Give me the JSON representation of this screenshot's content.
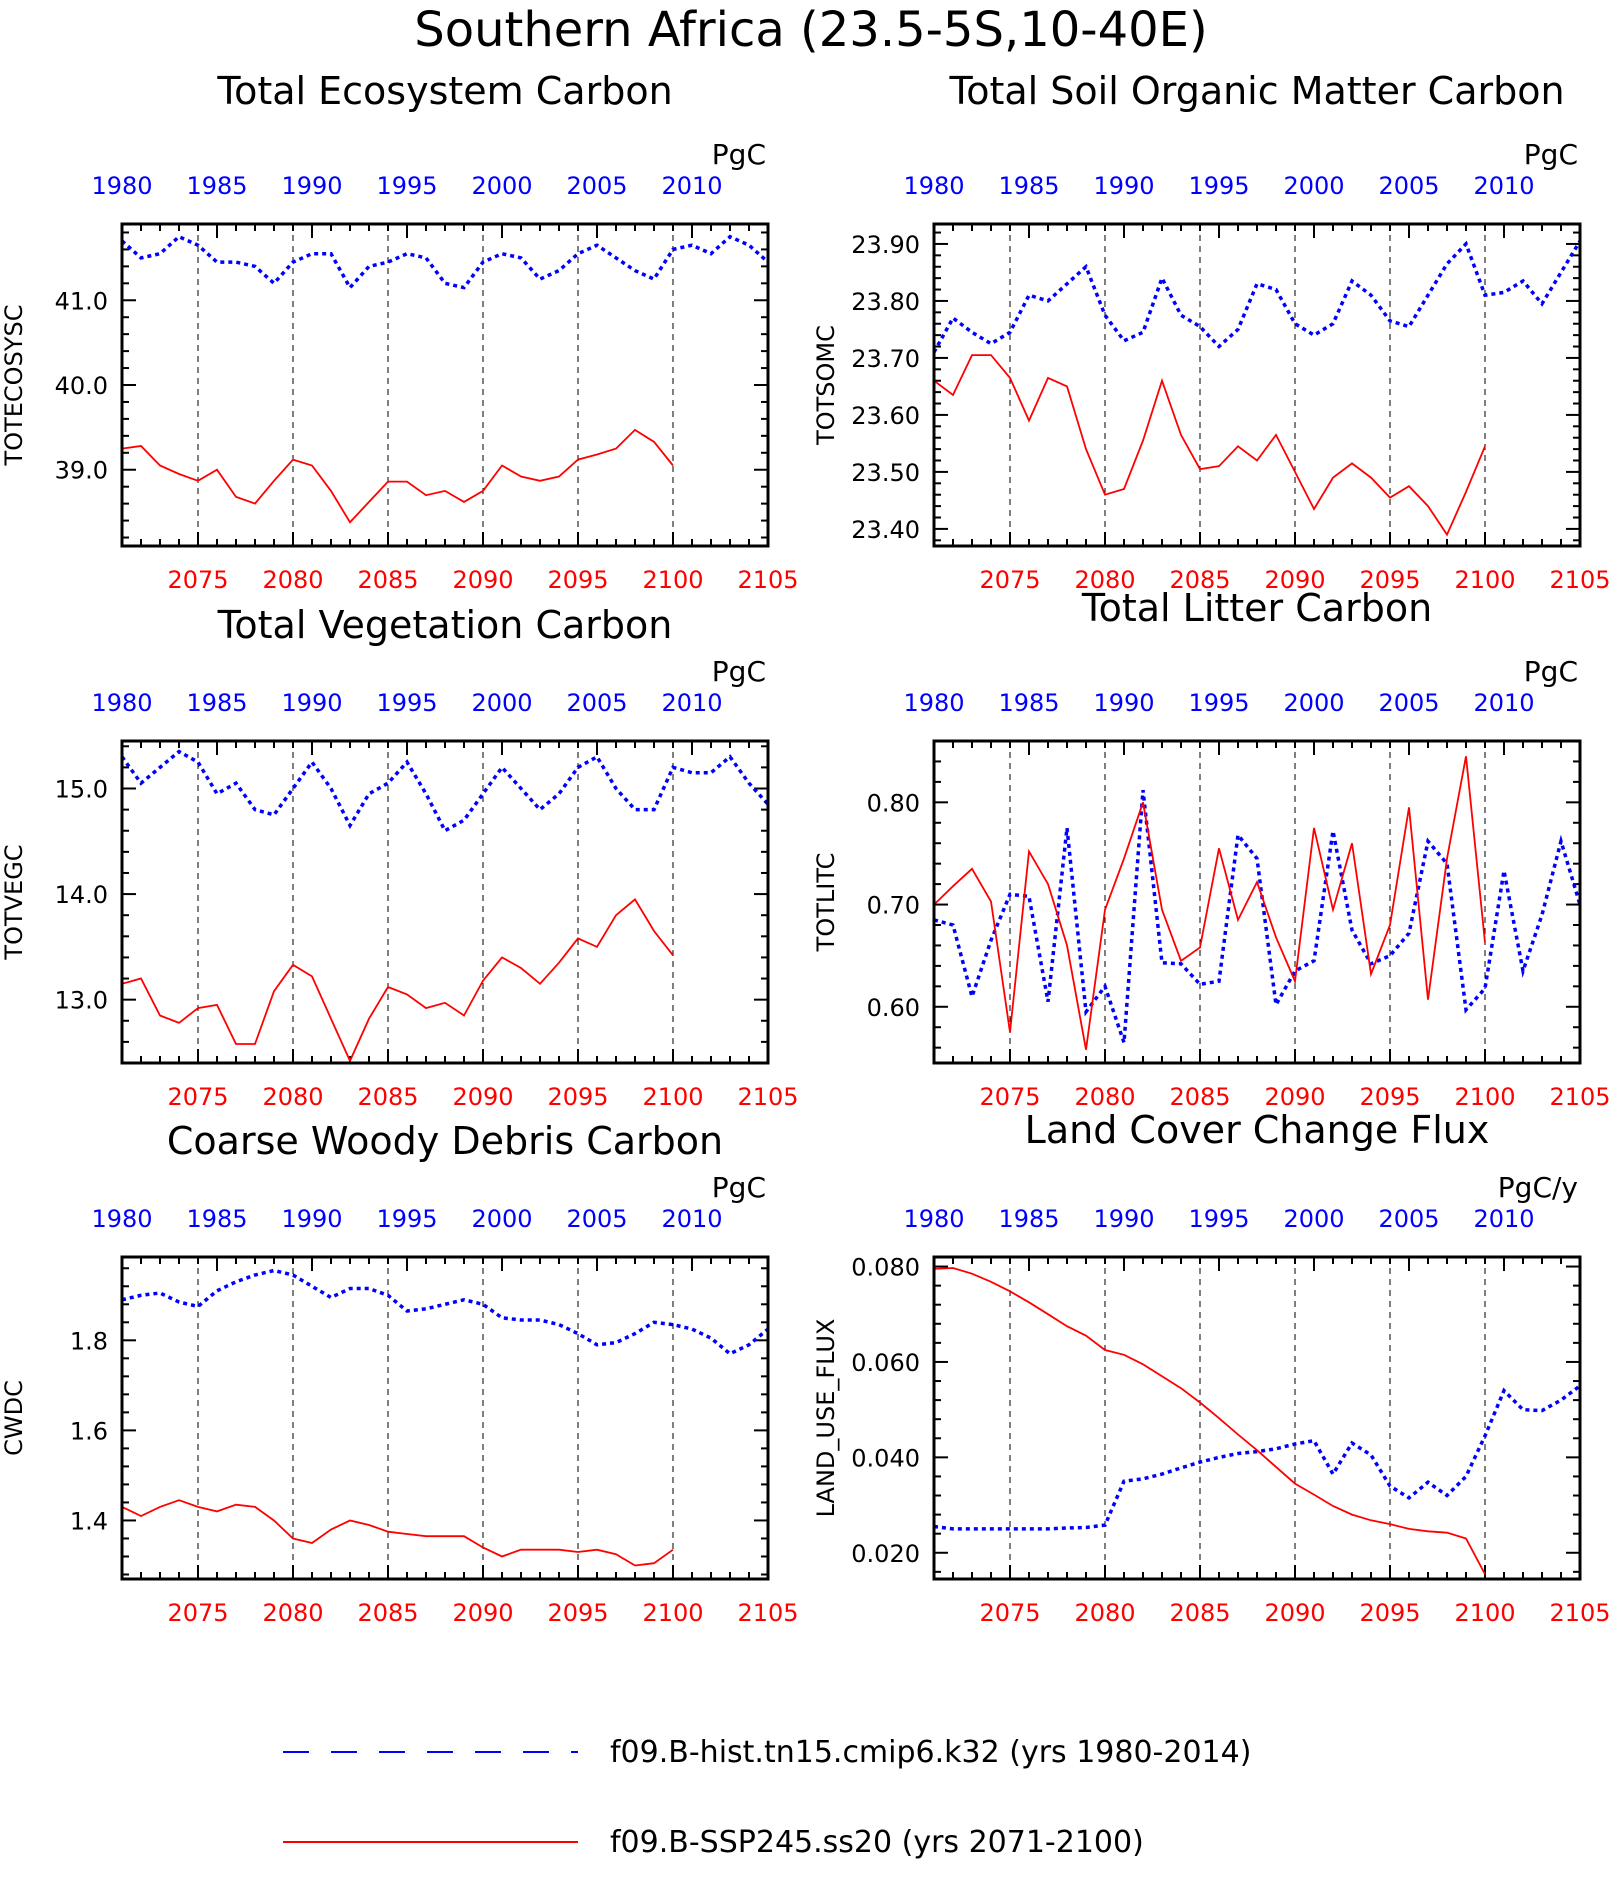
{
  "title": "Southern Africa (23.5-5S,10-40E)",
  "colors": {
    "hist": "#0000ff",
    "ssp": "#ff0000",
    "axis": "#000000",
    "grid": "#000000"
  },
  "legend": [
    {
      "label": "f09.B-hist.tn15.cmip6.k32 (yrs 1980-2014)",
      "color": "#0000ff",
      "style": "dashed"
    },
    {
      "label": "f09.B-SSP245.ss20 (yrs 2071-2100)",
      "color": "#ff0000",
      "style": "solid"
    }
  ],
  "chart_data": [
    {
      "type": "line",
      "title": "Total Ecosystem Carbon",
      "ylabel": "TOTECOSYSC",
      "units": "PgC",
      "ylim": [
        38.1,
        41.9
      ],
      "yticks": [
        39.0,
        40.0,
        41.0
      ],
      "ytick_labels": [
        "39.0",
        "40.0",
        "41.0"
      ],
      "bottom_axis": {
        "range": [
          2071,
          2105
        ],
        "ticks": [
          2075,
          2080,
          2085,
          2090,
          2095,
          2100,
          2105
        ]
      },
      "top_axis": {
        "range": [
          1980,
          2014
        ],
        "ticks": [
          1980,
          1985,
          1990,
          1995,
          2000,
          2005,
          2010
        ]
      },
      "series": [
        {
          "name": "f09.B-hist.tn15.cmip6.k32 (yrs 1980-2014)",
          "color": "#0000ff",
          "style": "dotted",
          "start": 1980,
          "values": [
            41.7,
            41.5,
            41.55,
            41.75,
            41.65,
            41.45,
            41.45,
            41.4,
            41.2,
            41.45,
            41.55,
            41.55,
            41.15,
            41.4,
            41.45,
            41.55,
            41.5,
            41.2,
            41.15,
            41.45,
            41.55,
            41.5,
            41.25,
            41.35,
            41.55,
            41.65,
            41.5,
            41.35,
            41.25,
            41.6,
            41.65,
            41.55,
            41.75,
            41.65,
            41.45
          ]
        },
        {
          "name": "f09.B-SSP245.ss20 (yrs 2071-2100)",
          "color": "#ff0000",
          "style": "solid",
          "start": 2071,
          "values": [
            39.25,
            39.28,
            39.05,
            38.95,
            38.87,
            39.0,
            38.68,
            38.6,
            38.87,
            39.12,
            39.05,
            38.75,
            38.38,
            38.62,
            38.86,
            38.86,
            38.7,
            38.75,
            38.62,
            38.75,
            39.05,
            38.92,
            38.87,
            38.92,
            39.12,
            39.18,
            39.25,
            39.47,
            39.33,
            39.05
          ]
        }
      ]
    },
    {
      "type": "line",
      "title": "Total Soil Organic Matter Carbon",
      "ylabel": "TOTSOMC",
      "units": "PgC",
      "ylim": [
        23.37,
        23.935
      ],
      "yticks": [
        23.4,
        23.5,
        23.6,
        23.7,
        23.8,
        23.9
      ],
      "ytick_labels": [
        "23.40",
        "23.50",
        "23.60",
        "23.70",
        "23.80",
        "23.90"
      ],
      "bottom_axis": {
        "range": [
          2071,
          2105
        ],
        "ticks": [
          2075,
          2080,
          2085,
          2090,
          2095,
          2100,
          2105
        ]
      },
      "top_axis": {
        "range": [
          1980,
          2014
        ],
        "ticks": [
          1980,
          1985,
          1990,
          1995,
          2000,
          2005,
          2010
        ]
      },
      "series": [
        {
          "name": "f09.B-hist.tn15.cmip6.k32 (yrs 1980-2014)",
          "color": "#0000ff",
          "style": "dotted",
          "start": 1980,
          "values": [
            23.71,
            23.77,
            23.745,
            23.725,
            23.745,
            23.81,
            23.8,
            23.83,
            23.86,
            23.775,
            23.73,
            23.745,
            23.84,
            23.775,
            23.755,
            23.72,
            23.75,
            23.83,
            23.82,
            23.76,
            23.74,
            23.76,
            23.835,
            23.81,
            23.765,
            23.755,
            23.81,
            23.865,
            23.9,
            23.81,
            23.815,
            23.835,
            23.795,
            23.85,
            23.905
          ]
        },
        {
          "name": "f09.B-SSP245.ss20 (yrs 2071-2100)",
          "color": "#ff0000",
          "style": "solid",
          "start": 2071,
          "values": [
            23.66,
            23.635,
            23.705,
            23.705,
            23.665,
            23.59,
            23.665,
            23.65,
            23.54,
            23.46,
            23.47,
            23.555,
            23.66,
            23.565,
            23.505,
            23.51,
            23.545,
            23.52,
            23.565,
            23.5,
            23.435,
            23.49,
            23.515,
            23.49,
            23.455,
            23.475,
            23.44,
            23.39,
            23.465,
            23.545
          ]
        }
      ]
    },
    {
      "type": "line",
      "title": "Total Vegetation Carbon",
      "ylabel": "TOTVEGC",
      "units": "PgC",
      "ylim": [
        12.4,
        15.45
      ],
      "yticks": [
        13.0,
        14.0,
        15.0
      ],
      "ytick_labels": [
        "13.0",
        "14.0",
        "15.0"
      ],
      "bottom_axis": {
        "range": [
          2071,
          2105
        ],
        "ticks": [
          2075,
          2080,
          2085,
          2090,
          2095,
          2100,
          2105
        ]
      },
      "top_axis": {
        "range": [
          1980,
          2014
        ],
        "ticks": [
          1980,
          1985,
          1990,
          1995,
          2000,
          2005,
          2010
        ]
      },
      "series": [
        {
          "name": "f09.B-hist.tn15.cmip6.k32 (yrs 1980-2014)",
          "color": "#0000ff",
          "style": "dotted",
          "start": 1980,
          "values": [
            15.3,
            15.05,
            15.2,
            15.35,
            15.25,
            14.95,
            15.05,
            14.8,
            14.75,
            15.0,
            15.25,
            15.0,
            14.65,
            14.95,
            15.05,
            15.25,
            14.95,
            14.6,
            14.7,
            14.95,
            15.2,
            15.0,
            14.8,
            14.95,
            15.2,
            15.3,
            15.0,
            14.8,
            14.8,
            15.2,
            15.15,
            15.15,
            15.3,
            15.05,
            14.85
          ]
        },
        {
          "name": "f09.B-SSP245.ss20 (yrs 2071-2100)",
          "color": "#ff0000",
          "style": "solid",
          "start": 2071,
          "values": [
            13.15,
            13.2,
            12.85,
            12.78,
            12.92,
            12.95,
            12.58,
            12.58,
            13.08,
            13.33,
            13.22,
            12.82,
            12.42,
            12.82,
            13.12,
            13.05,
            12.92,
            12.97,
            12.85,
            13.18,
            13.4,
            13.3,
            13.15,
            13.35,
            13.58,
            13.5,
            13.8,
            13.95,
            13.65,
            13.42
          ]
        }
      ]
    },
    {
      "type": "line",
      "title": "Total Litter Carbon",
      "ylabel": "TOTLITC",
      "units": "PgC",
      "ylim": [
        0.545,
        0.86
      ],
      "yticks": [
        0.6,
        0.7,
        0.8
      ],
      "ytick_labels": [
        "0.60",
        "0.70",
        "0.80"
      ],
      "bottom_axis": {
        "range": [
          2071,
          2105
        ],
        "ticks": [
          2075,
          2080,
          2085,
          2090,
          2095,
          2100,
          2105
        ]
      },
      "top_axis": {
        "range": [
          1980,
          2014
        ],
        "ticks": [
          1980,
          1985,
          1990,
          1995,
          2000,
          2005,
          2010
        ]
      },
      "series": [
        {
          "name": "f09.B-hist.tn15.cmip6.k32 (yrs 1980-2014)",
          "color": "#0000ff",
          "style": "dotted",
          "start": 1980,
          "values": [
            0.685,
            0.68,
            0.61,
            0.665,
            0.71,
            0.708,
            0.605,
            0.775,
            0.595,
            0.62,
            0.565,
            0.812,
            0.643,
            0.642,
            0.622,
            0.625,
            0.768,
            0.745,
            0.602,
            0.635,
            0.645,
            0.772,
            0.675,
            0.642,
            0.65,
            0.672,
            0.762,
            0.74,
            0.597,
            0.618,
            0.733,
            0.635,
            0.69,
            0.762,
            0.7
          ]
        },
        {
          "name": "f09.B-SSP245.ss20 (yrs 2071-2100)",
          "color": "#ff0000",
          "style": "solid",
          "start": 2071,
          "values": [
            0.7,
            0.718,
            0.735,
            0.703,
            0.575,
            0.752,
            0.72,
            0.66,
            0.558,
            0.695,
            0.745,
            0.8,
            0.695,
            0.645,
            0.658,
            0.755,
            0.685,
            0.722,
            0.668,
            0.625,
            0.775,
            0.695,
            0.76,
            0.632,
            0.68,
            0.795,
            0.607,
            0.745,
            0.845,
            0.663
          ]
        }
      ]
    },
    {
      "type": "line",
      "title": "Coarse Woody Debris Carbon",
      "ylabel": "CWDC",
      "units": "PgC",
      "ylim": [
        1.27,
        1.985
      ],
      "yticks": [
        1.4,
        1.6,
        1.8
      ],
      "ytick_labels": [
        "1.4",
        "1.6",
        "1.8"
      ],
      "bottom_axis": {
        "range": [
          2071,
          2105
        ],
        "ticks": [
          2075,
          2080,
          2085,
          2090,
          2095,
          2100,
          2105
        ]
      },
      "top_axis": {
        "range": [
          1980,
          2014
        ],
        "ticks": [
          1980,
          1985,
          1990,
          1995,
          2000,
          2005,
          2010
        ]
      },
      "series": [
        {
          "name": "f09.B-hist.tn15.cmip6.k32 (yrs 1980-2014)",
          "color": "#0000ff",
          "style": "dotted",
          "start": 1980,
          "values": [
            1.89,
            1.9,
            1.905,
            1.885,
            1.875,
            1.91,
            1.93,
            1.945,
            1.955,
            1.945,
            1.92,
            1.895,
            1.915,
            1.915,
            1.9,
            1.865,
            1.87,
            1.88,
            1.89,
            1.88,
            1.85,
            1.845,
            1.845,
            1.835,
            1.815,
            1.79,
            1.795,
            1.815,
            1.84,
            1.835,
            1.825,
            1.805,
            1.77,
            1.79,
            1.825
          ]
        },
        {
          "name": "f09.B-SSP245.ss20 (yrs 2071-2100)",
          "color": "#ff0000",
          "style": "solid",
          "start": 2071,
          "values": [
            1.43,
            1.41,
            1.43,
            1.445,
            1.43,
            1.42,
            1.435,
            1.43,
            1.4,
            1.36,
            1.35,
            1.38,
            1.4,
            1.39,
            1.375,
            1.37,
            1.365,
            1.365,
            1.365,
            1.34,
            1.32,
            1.335,
            1.335,
            1.335,
            1.33,
            1.335,
            1.325,
            1.3,
            1.305,
            1.335
          ]
        }
      ]
    },
    {
      "type": "line",
      "title": "Land Cover Change Flux",
      "ylabel": "LAND_USE_FLUX",
      "units": "PgC/y",
      "ylim": [
        0.0145,
        0.082
      ],
      "yticks": [
        0.02,
        0.04,
        0.06,
        0.08
      ],
      "ytick_labels": [
        "0.020",
        "0.040",
        "0.060",
        "0.080"
      ],
      "bottom_axis": {
        "range": [
          2071,
          2105
        ],
        "ticks": [
          2075,
          2080,
          2085,
          2090,
          2095,
          2100,
          2105
        ]
      },
      "top_axis": {
        "range": [
          1980,
          2014
        ],
        "ticks": [
          1980,
          1985,
          1990,
          1995,
          2000,
          2005,
          2010
        ]
      },
      "series": [
        {
          "name": "f09.B-hist.tn15.cmip6.k32 (yrs 1980-2014)",
          "color": "#0000ff",
          "style": "dotted",
          "start": 1980,
          "values": [
            0.0255,
            0.025,
            0.025,
            0.025,
            0.025,
            0.025,
            0.025,
            0.0252,
            0.0253,
            0.0258,
            0.035,
            0.0355,
            0.0365,
            0.0378,
            0.039,
            0.04,
            0.0408,
            0.0412,
            0.0418,
            0.0428,
            0.0435,
            0.0365,
            0.043,
            0.0405,
            0.034,
            0.0315,
            0.0348,
            0.032,
            0.036,
            0.0445,
            0.054,
            0.05,
            0.0498,
            0.052,
            0.055
          ]
        },
        {
          "name": "f09.B-SSP245.ss20 (yrs 2071-2100)",
          "color": "#ff0000",
          "style": "solid",
          "start": 2071,
          "values": [
            0.0795,
            0.0797,
            0.0785,
            0.0768,
            0.0748,
            0.0725,
            0.07,
            0.0675,
            0.0655,
            0.0625,
            0.0615,
            0.0595,
            0.057,
            0.0545,
            0.0515,
            0.0482,
            0.0448,
            0.0415,
            0.038,
            0.0345,
            0.0322,
            0.0298,
            0.028,
            0.0268,
            0.026,
            0.025,
            0.0245,
            0.0242,
            0.023,
            0.0155
          ]
        }
      ]
    }
  ]
}
